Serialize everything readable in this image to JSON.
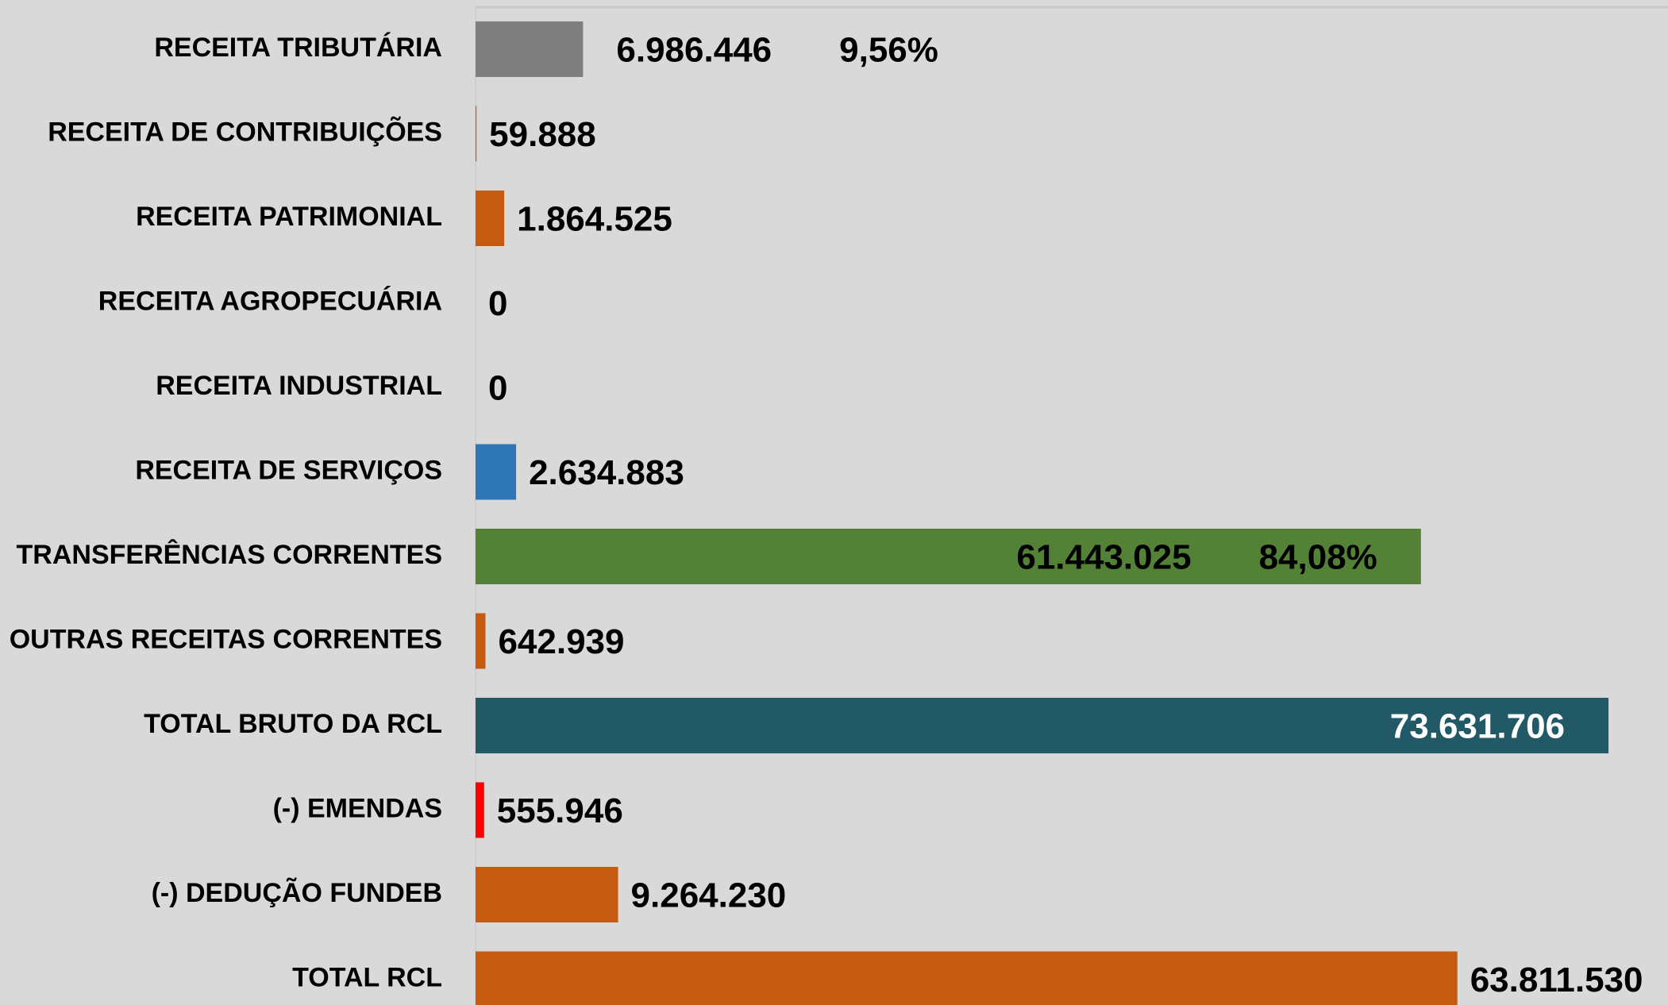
{
  "chart_data": {
    "type": "hbar",
    "categories": [
      "RECEITA TRIBUTÁRIA",
      "RECEITA DE CONTRIBUIÇÕES",
      "RECEITA PATRIMONIAL",
      "RECEITA AGROPECUÁRIA",
      "RECEITA INDUSTRIAL",
      "RECEITA DE SERVIÇOS",
      "TRANSFERÊNCIAS CORRENTES",
      "OUTRAS RECEITAS CORRENTES",
      "TOTAL BRUTO DA RCL",
      "(-) EMENDAS",
      "(-) DEDUÇÃO FUNDEB",
      "TOTAL RCL"
    ],
    "values": [
      6986446,
      59888,
      1864525,
      0,
      0,
      2634883,
      61443025,
      642939,
      73631706,
      555946,
      9264230,
      63811530
    ],
    "value_labels": [
      "6.986.446",
      "59.888",
      "1.864.525",
      "0",
      "0",
      "2.634.883",
      "61.443.025",
      "642.939",
      "73.631.706",
      "555.946",
      "9.264.230",
      "63.811.530"
    ],
    "percent_labels": [
      "9,56%",
      null,
      null,
      null,
      null,
      null,
      "84,08%",
      null,
      null,
      null,
      null,
      null
    ],
    "colors": [
      "#7f7f7f",
      "#c55a11",
      "#c55a11",
      "#c55a11",
      "#c55a11",
      "#2e75b6",
      "#538135",
      "#c55a11",
      "#215967",
      "#ff0000",
      "#c55a11",
      "#c55a11"
    ],
    "xlim": [
      0,
      77500000
    ]
  }
}
